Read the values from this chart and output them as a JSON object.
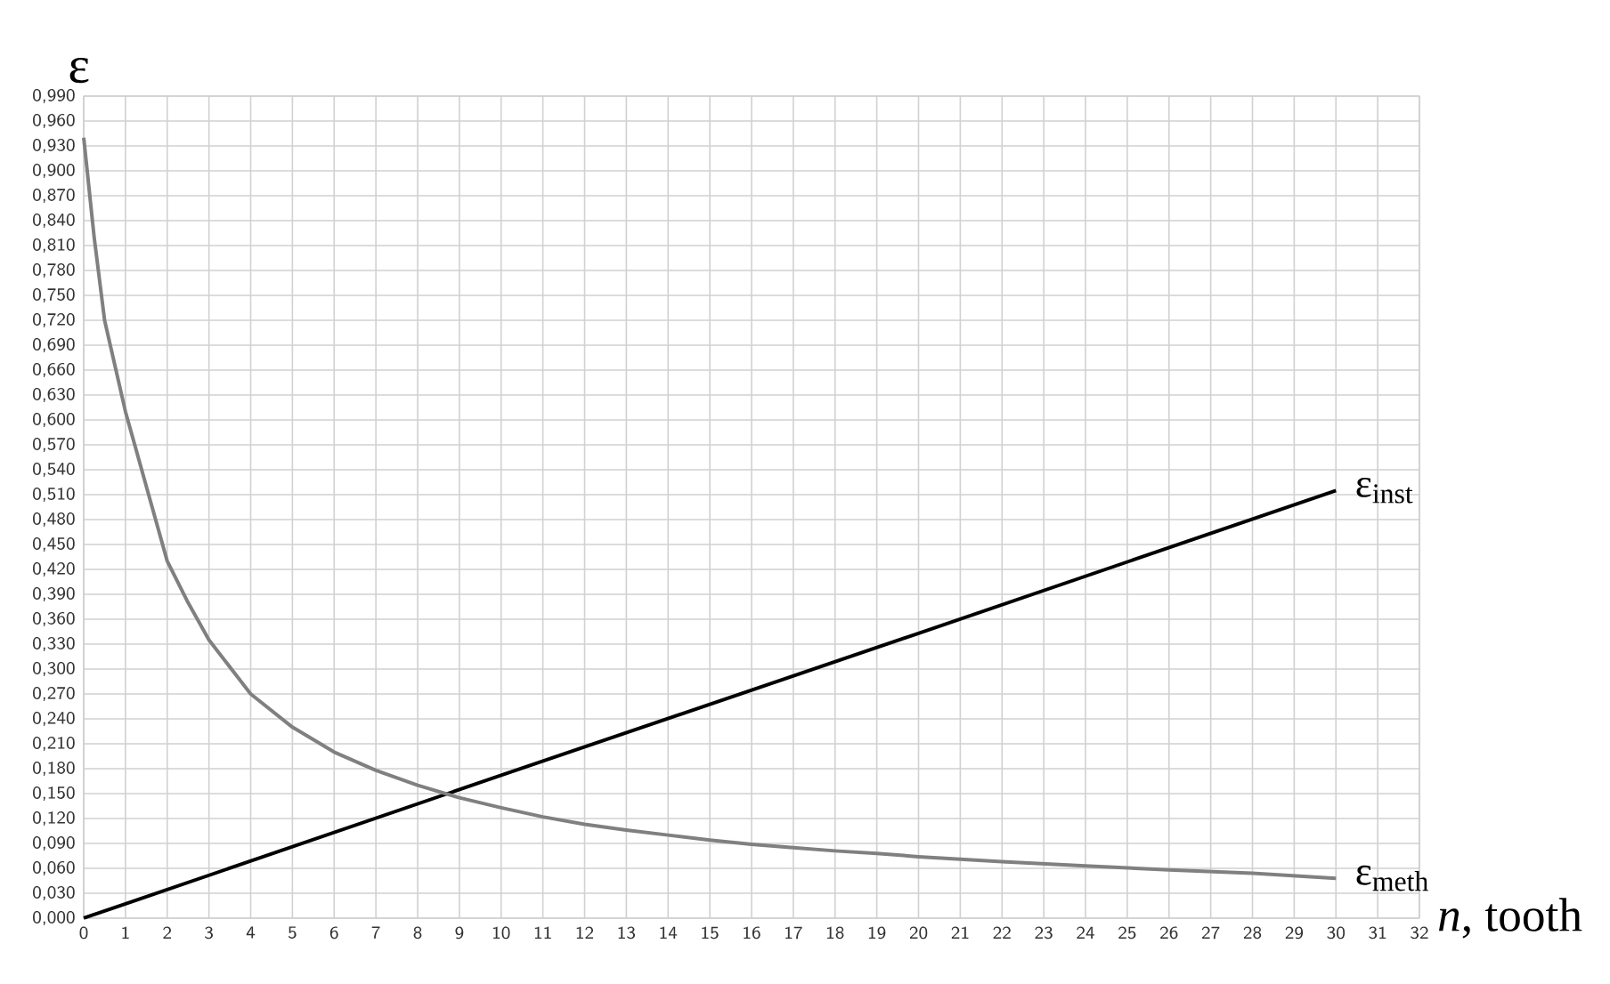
{
  "chart_data": {
    "type": "line",
    "ylabel": "ε",
    "xlabel": "*n*, tooth",
    "xlim": [
      0,
      32
    ],
    "xticks": [
      0,
      1,
      2,
      3,
      4,
      5,
      6,
      7,
      8,
      9,
      10,
      11,
      12,
      13,
      14,
      15,
      16,
      17,
      18,
      19,
      20,
      21,
      22,
      23,
      24,
      25,
      26,
      27,
      28,
      29,
      30,
      31,
      32
    ],
    "ylim": [
      0,
      0.99
    ],
    "yticks": [
      {
        "value": 0,
        "label": "0,000"
      },
      {
        "value": 0.03,
        "label": "0,030"
      },
      {
        "value": 0.06,
        "label": "0,060"
      },
      {
        "value": 0.09,
        "label": "0,090"
      },
      {
        "value": 0.12,
        "label": "0,120"
      },
      {
        "value": 0.15,
        "label": "0,150"
      },
      {
        "value": 0.18,
        "label": "0,180"
      },
      {
        "value": 0.21,
        "label": "0,210"
      },
      {
        "value": 0.24,
        "label": "0,240"
      },
      {
        "value": 0.27,
        "label": "0,270"
      },
      {
        "value": 0.3,
        "label": "0,300"
      },
      {
        "value": 0.33,
        "label": "0,330"
      },
      {
        "value": 0.36,
        "label": "0,360"
      },
      {
        "value": 0.39,
        "label": "0,390"
      },
      {
        "value": 0.42,
        "label": "0,420"
      },
      {
        "value": 0.45,
        "label": "0,450"
      },
      {
        "value": 0.48,
        "label": "0,480"
      },
      {
        "value": 0.51,
        "label": "0,510"
      },
      {
        "value": 0.54,
        "label": "0,540"
      },
      {
        "value": 0.57,
        "label": "0,570"
      },
      {
        "value": 0.6,
        "label": "0,600"
      },
      {
        "value": 0.63,
        "label": "0,630"
      },
      {
        "value": 0.66,
        "label": "0,660"
      },
      {
        "value": 0.69,
        "label": "0,690"
      },
      {
        "value": 0.72,
        "label": "0,720"
      },
      {
        "value": 0.75,
        "label": "0,750"
      },
      {
        "value": 0.78,
        "label": "0,780"
      },
      {
        "value": 0.81,
        "label": "0,810"
      },
      {
        "value": 0.84,
        "label": "0,840"
      },
      {
        "value": 0.87,
        "label": "0,870"
      },
      {
        "value": 0.9,
        "label": "0,900"
      },
      {
        "value": 0.93,
        "label": "0,930"
      },
      {
        "value": 0.96,
        "label": "0,960"
      },
      {
        "value": 0.99,
        "label": "0,990"
      }
    ],
    "grid": true,
    "legend": false,
    "marker": "none",
    "line_style": "solid",
    "series": [
      {
        "name": "ε$_{inst}$",
        "color": "#000000",
        "x": [
          0,
          10,
          20,
          30
        ],
        "values": [
          0,
          0.172,
          0.343,
          0.515
        ]
      },
      {
        "name": "ε$_{meth}$",
        "color": "#808080",
        "x": [
          0,
          0.25,
          0.5,
          1,
          1.5,
          2,
          2.5,
          3,
          4,
          5,
          6,
          7,
          8,
          9,
          10,
          11,
          12,
          13,
          14,
          15,
          16,
          17,
          18,
          19,
          20,
          22,
          24,
          26,
          28,
          30
        ],
        "values": [
          0.94,
          0.82,
          0.72,
          0.61,
          0.52,
          0.43,
          0.38,
          0.335,
          0.27,
          0.23,
          0.2,
          0.178,
          0.16,
          0.145,
          0.133,
          0.122,
          0.113,
          0.106,
          0.1,
          0.094,
          0.089,
          0.085,
          0.081,
          0.078,
          0.074,
          0.068,
          0.063,
          0.058,
          0.054,
          0.048
        ]
      }
    ]
  }
}
